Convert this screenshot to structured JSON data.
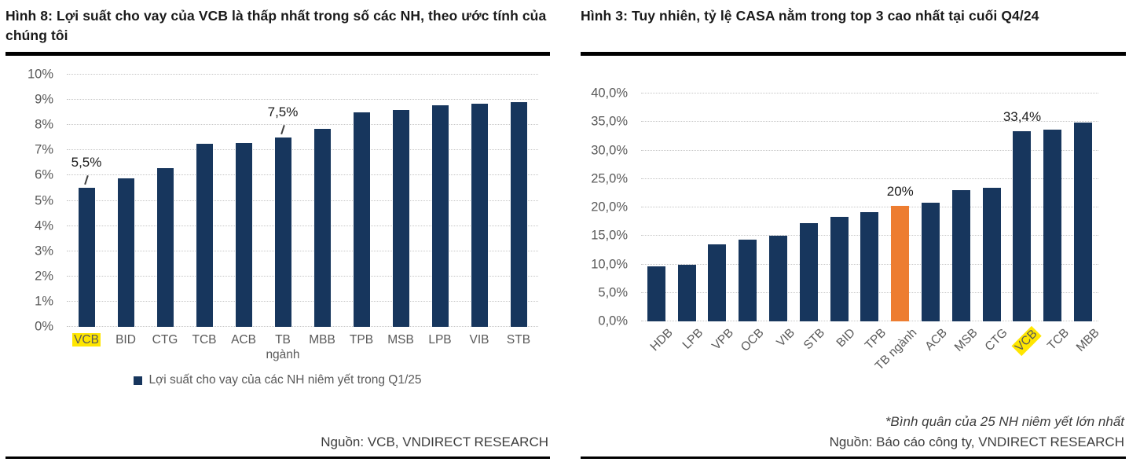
{
  "accent_colors": {
    "bar_navy": "#17365d",
    "bar_orange": "#ed7d31",
    "highlight_yellow": "#ffe600"
  },
  "panels": {
    "0": {
      "title": "Hình 8: Lợi suất cho vay của VCB là thấp nhất trong số các NH, theo ước tính của chúng tôi",
      "legend": "Lợi suất cho vay của các NH niêm yết trong Q1/25",
      "source": "Nguồn: VCB, VNDIRECT RESEARCH",
      "chart_data": {
        "type": "bar",
        "categories": [
          "VCB",
          "BID",
          "CTG",
          "TCB",
          "ACB",
          "TB ngành",
          "MBB",
          "TPB",
          "MSB",
          "LPB",
          "VIB",
          "STB"
        ],
        "values": [
          5.5,
          5.9,
          6.3,
          7.25,
          7.3,
          7.5,
          7.85,
          8.5,
          8.6,
          8.8,
          8.85,
          8.9
        ],
        "ylim": [
          0,
          10
        ],
        "yticks": [
          "0%",
          "1%",
          "2%",
          "3%",
          "4%",
          "5%",
          "6%",
          "7%",
          "8%",
          "9%",
          "10%"
        ],
        "bar_color": "#17365d",
        "highlight_category": "VCB",
        "data_labels": [
          {
            "category": "VCB",
            "text": "5,5%"
          },
          {
            "category": "TB ngành",
            "text": "7,5%"
          }
        ],
        "grid": true,
        "legend_position": "bottom"
      }
    },
    "1": {
      "title": "Hình 3: Tuy nhiên, tỷ lệ CASA nằm trong top 3 cao nhất tại cuối Q4/24",
      "footnote": "*Bình quân của 25 NH niêm yết lớn nhất",
      "source": "Nguồn: Báo cáo công ty, VNDIRECT RESEARCH",
      "chart_data": {
        "type": "bar",
        "categories": [
          "HDB",
          "LPB",
          "VPB",
          "OCB",
          "VIB",
          "STB",
          "BID",
          "TPB",
          "TB ngành",
          "ACB",
          "MSB",
          "CTG",
          "VCB",
          "TCB",
          "MBB"
        ],
        "values": [
          9.6,
          9.9,
          13.5,
          14.4,
          15.0,
          17.3,
          18.3,
          19.2,
          20.3,
          20.8,
          23.0,
          23.5,
          33.4,
          33.6,
          34.9
        ],
        "ylim": [
          0,
          40
        ],
        "yticks": [
          "0,0%",
          "5,0%",
          "10,0%",
          "15,0%",
          "20,0%",
          "25,0%",
          "30,0%",
          "35,0%",
          "40,0%"
        ],
        "bar_color": "#17365d",
        "accent_category": "TB ngành",
        "accent_color": "#ed7d31",
        "highlight_category": "VCB",
        "data_labels": [
          {
            "category": "TB ngành",
            "text": "20%"
          },
          {
            "category": "VCB",
            "text": "33,4%"
          }
        ],
        "grid": true,
        "x_labels_rotated_deg": 45
      }
    }
  }
}
